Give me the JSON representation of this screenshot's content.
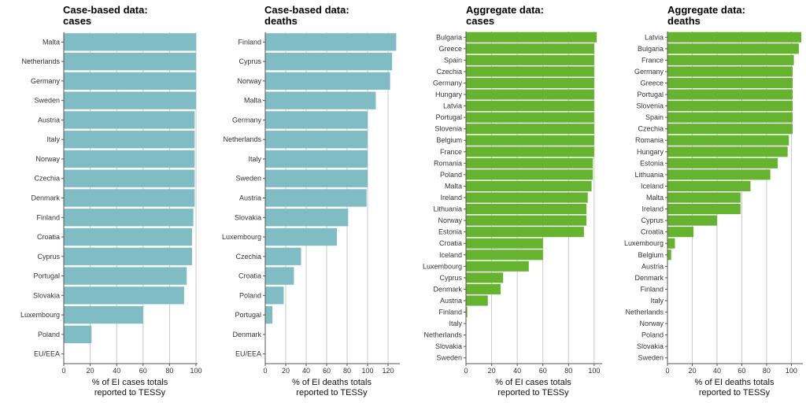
{
  "colors": {
    "case_based": "#7fbcc4",
    "aggregate": "#65b32e",
    "grid": "#c8c8c8",
    "axis": "#555555"
  },
  "chart_data": [
    {
      "type": "bar",
      "orientation": "horizontal",
      "title_line1": "Case-based data:",
      "title_line2": "cases",
      "color_key": "case_based",
      "xlabel_line1": "% of EI cases totals",
      "xlabel_line2": "reported to TESSy",
      "xlim": [
        0,
        100
      ],
      "ticks": [
        0,
        20,
        40,
        60,
        80,
        100
      ],
      "categories": [
        "Malta",
        "Netherlands",
        "Germany",
        "Sweden",
        "Austria",
        "Italy",
        "Norway",
        "Czechia",
        "Denmark",
        "Finland",
        "Croatia",
        "Cyprus",
        "Portugal",
        "Slovakia",
        "Luxembourg",
        "Poland",
        "EU/EEA"
      ],
      "values": [
        100,
        100,
        100,
        100,
        99,
        99,
        99,
        99,
        99,
        98,
        97,
        97,
        93,
        91,
        60,
        21,
        0
      ]
    },
    {
      "type": "bar",
      "orientation": "horizontal",
      "title_line1": "Case-based data:",
      "title_line2": "deaths",
      "color_key": "case_based",
      "xlabel_line1": "% of EI deaths totals",
      "xlabel_line2": "reported to TESSy",
      "xlim": [
        0,
        130
      ],
      "ticks": [
        0,
        20,
        40,
        60,
        80,
        100,
        120
      ],
      "categories": [
        "Finland",
        "Cyprus",
        "Norway",
        "Malta",
        "Germany",
        "Netherlands",
        "Italy",
        "Sweden",
        "Austria",
        "Slovakia",
        "Luxembourg",
        "Czechia",
        "Croatia",
        "Poland",
        "Portugal",
        "Denmark",
        "EU/EEA"
      ],
      "values": [
        128,
        124,
        122,
        108,
        100,
        100,
        100,
        100,
        99,
        81,
        70,
        35,
        28,
        18,
        7,
        0,
        0
      ]
    },
    {
      "type": "bar",
      "orientation": "horizontal",
      "title_line1": "Aggregate data:",
      "title_line2": "cases",
      "color_key": "aggregate",
      "xlabel_line1": "% of EI cases totals",
      "xlabel_line2": "reported to TESSy",
      "xlim": [
        0,
        105
      ],
      "ticks": [
        0,
        20,
        40,
        60,
        80,
        100
      ],
      "categories": [
        "Bulgaria",
        "Greece",
        "Spain",
        "Czechia",
        "Germany",
        "Hungary",
        "Latvia",
        "Portugal",
        "Slovenia",
        "Belgium",
        "France",
        "Romania",
        "Poland",
        "Malta",
        "Ireland",
        "Lithuania",
        "Norway",
        "Estonia",
        "Croatia",
        "Iceland",
        "Luxembourg",
        "Cyprus",
        "Denmark",
        "Austria",
        "Finland",
        "Italy",
        "Netherlands",
        "Slovakia",
        "Sweden"
      ],
      "values": [
        102,
        100,
        100,
        100,
        100,
        100,
        100,
        100,
        100,
        100,
        100,
        99,
        99,
        98,
        95,
        94,
        94,
        92,
        60,
        60,
        49,
        29,
        27,
        17,
        1,
        0,
        0,
        0,
        0
      ]
    },
    {
      "type": "bar",
      "orientation": "horizontal",
      "title_line1": "Aggregate data:",
      "title_line2": "deaths",
      "color_key": "aggregate",
      "xlabel_line1": "% of EI deaths totals",
      "xlabel_line2": "reported to TESSy",
      "xlim": [
        0,
        108
      ],
      "ticks": [
        0,
        20,
        40,
        60,
        80,
        100
      ],
      "categories": [
        "Latvia",
        "Bulgaria",
        "France",
        "Germany",
        "Greece",
        "Portugal",
        "Slovenia",
        "Spain",
        "Czechia",
        "Romania",
        "Hungary",
        "Estonia",
        "Lithuania",
        "Iceland",
        "Malta",
        "Ireland",
        "Cyprus",
        "Croatia",
        "Luxembourg",
        "Belgium",
        "Austria",
        "Denmark",
        "Finland",
        "Italy",
        "Netherlands",
        "Norway",
        "Poland",
        "Slovakia",
        "Sweden"
      ],
      "values": [
        108,
        106,
        102,
        101,
        101,
        101,
        101,
        101,
        101,
        98,
        97,
        89,
        83,
        67,
        59,
        59,
        40,
        21,
        6,
        3,
        0,
        0,
        0,
        0,
        0,
        0,
        0,
        0,
        0
      ]
    }
  ]
}
